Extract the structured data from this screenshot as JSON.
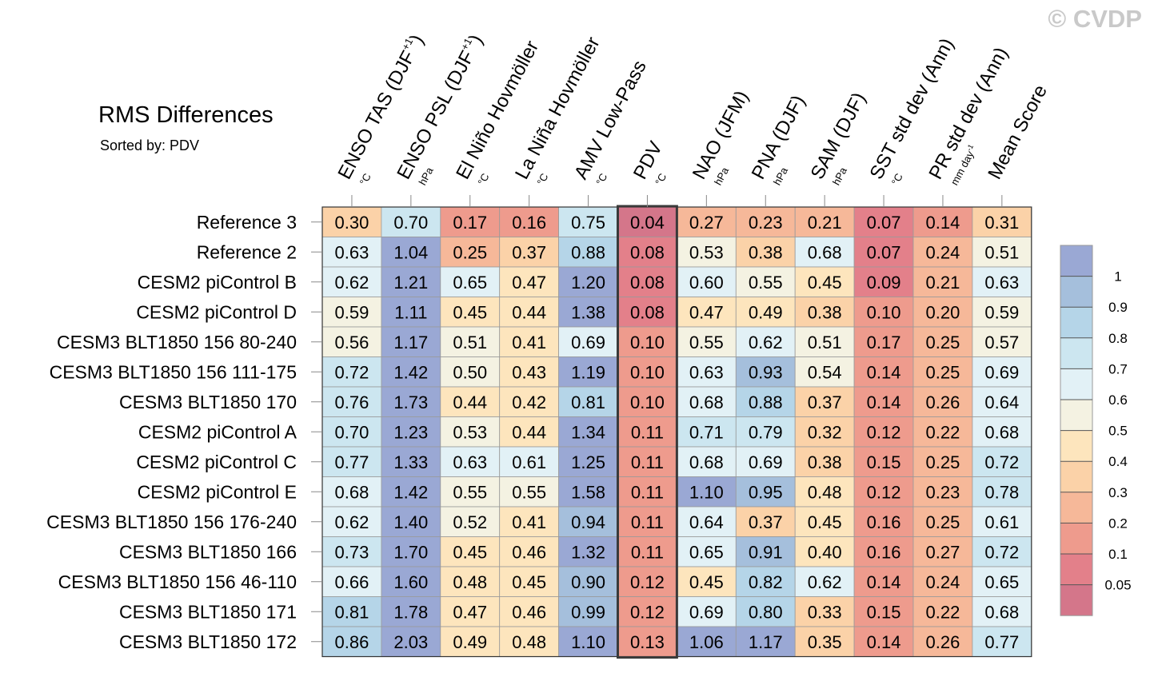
{
  "watermark": "© CVDP",
  "title": "RMS Differences",
  "subtitle": "Sorted by: PDV",
  "chart_data": {
    "type": "heatmap",
    "columns": [
      {
        "name": "ENSO TAS (DJF",
        "sup": "+1",
        "close": ")",
        "unit": "°C",
        "unit_sup": ""
      },
      {
        "name": "ENSO PSL (DJF",
        "sup": "+1",
        "close": ")",
        "unit": "hPa",
        "unit_sup": ""
      },
      {
        "name": "El Niño Hovmöller",
        "sup": "",
        "close": "",
        "unit": "°C",
        "unit_sup": ""
      },
      {
        "name": "La Niña Hovmöller",
        "sup": "",
        "close": "",
        "unit": "°C",
        "unit_sup": ""
      },
      {
        "name": "AMV Low-Pass",
        "sup": "",
        "close": "",
        "unit": "°C",
        "unit_sup": ""
      },
      {
        "name": "PDV",
        "sup": "",
        "close": "",
        "unit": "°C",
        "unit_sup": ""
      },
      {
        "name": "NAO (JFM)",
        "sup": "",
        "close": "",
        "unit": "hPa",
        "unit_sup": ""
      },
      {
        "name": "PNA (DJF)",
        "sup": "",
        "close": "",
        "unit": "hPa",
        "unit_sup": ""
      },
      {
        "name": "SAM (DJF)",
        "sup": "",
        "close": "",
        "unit": "hPa",
        "unit_sup": ""
      },
      {
        "name": "SST std dev (Ann)",
        "sup": "",
        "close": "",
        "unit": "°C",
        "unit_sup": ""
      },
      {
        "name": "PR std dev (Ann)",
        "sup": "",
        "close": "",
        "unit": "mm day",
        "unit_sup": "-1"
      },
      {
        "name": "Mean Score",
        "sup": "",
        "close": "",
        "unit": "",
        "unit_sup": ""
      }
    ],
    "highlight_column": "PDV",
    "rows": [
      {
        "label": "Reference 3",
        "values": [
          0.3,
          0.7,
          0.17,
          0.16,
          0.75,
          0.04,
          0.27,
          0.23,
          0.21,
          0.07,
          0.14,
          0.31
        ]
      },
      {
        "label": "Reference 2",
        "values": [
          0.63,
          1.04,
          0.25,
          0.37,
          0.88,
          0.08,
          0.53,
          0.38,
          0.68,
          0.07,
          0.24,
          0.51
        ]
      },
      {
        "label": "CESM2 piControl B",
        "values": [
          0.62,
          1.21,
          0.65,
          0.47,
          1.2,
          0.08,
          0.6,
          0.55,
          0.45,
          0.09,
          0.21,
          0.63
        ]
      },
      {
        "label": "CESM2 piControl D",
        "values": [
          0.59,
          1.11,
          0.45,
          0.44,
          1.38,
          0.08,
          0.47,
          0.49,
          0.38,
          0.1,
          0.2,
          0.59
        ]
      },
      {
        "label": "CESM3 BLT1850 156 80-240",
        "values": [
          0.56,
          1.17,
          0.51,
          0.41,
          0.69,
          0.1,
          0.55,
          0.62,
          0.51,
          0.17,
          0.25,
          0.57
        ]
      },
      {
        "label": "CESM3 BLT1850 156 111-175",
        "values": [
          0.72,
          1.42,
          0.5,
          0.43,
          1.19,
          0.1,
          0.63,
          0.93,
          0.54,
          0.14,
          0.25,
          0.69
        ]
      },
      {
        "label": "CESM3 BLT1850 170",
        "values": [
          0.76,
          1.73,
          0.44,
          0.42,
          0.81,
          0.1,
          0.68,
          0.88,
          0.37,
          0.14,
          0.26,
          0.64
        ]
      },
      {
        "label": "CESM2 piControl A",
        "values": [
          0.7,
          1.23,
          0.53,
          0.44,
          1.34,
          0.11,
          0.71,
          0.79,
          0.32,
          0.12,
          0.22,
          0.68
        ]
      },
      {
        "label": "CESM2 piControl C",
        "values": [
          0.77,
          1.33,
          0.63,
          0.61,
          1.25,
          0.11,
          0.68,
          0.69,
          0.38,
          0.15,
          0.25,
          0.72
        ]
      },
      {
        "label": "CESM2 piControl E",
        "values": [
          0.68,
          1.42,
          0.55,
          0.55,
          1.58,
          0.11,
          1.1,
          0.95,
          0.48,
          0.12,
          0.23,
          0.78
        ]
      },
      {
        "label": "CESM3 BLT1850 156 176-240",
        "values": [
          0.62,
          1.4,
          0.52,
          0.41,
          0.94,
          0.11,
          0.64,
          0.37,
          0.45,
          0.16,
          0.25,
          0.61
        ]
      },
      {
        "label": "CESM3 BLT1850 166",
        "values": [
          0.73,
          1.7,
          0.45,
          0.46,
          1.32,
          0.11,
          0.65,
          0.91,
          0.4,
          0.16,
          0.27,
          0.72
        ]
      },
      {
        "label": "CESM3 BLT1850 156 46-110",
        "values": [
          0.66,
          1.6,
          0.48,
          0.45,
          0.9,
          0.12,
          0.45,
          0.82,
          0.62,
          0.14,
          0.24,
          0.65
        ]
      },
      {
        "label": "CESM3 BLT1850 171",
        "values": [
          0.81,
          1.78,
          0.47,
          0.46,
          0.99,
          0.12,
          0.69,
          0.8,
          0.33,
          0.15,
          0.22,
          0.68
        ]
      },
      {
        "label": "CESM3 BLT1850 172",
        "values": [
          0.86,
          2.03,
          0.49,
          0.48,
          1.1,
          0.13,
          1.06,
          1.17,
          0.35,
          0.14,
          0.26,
          0.77
        ]
      }
    ],
    "value_format": "0.00",
    "colorbar": {
      "levels": [
        0.05,
        0.1,
        0.2,
        0.3,
        0.4,
        0.5,
        0.6,
        0.7,
        0.8,
        0.9,
        1
      ],
      "labels": [
        "0.05",
        "0.1",
        "0.2",
        "0.3",
        "0.4",
        "0.5",
        "0.6",
        "0.7",
        "0.8",
        "0.9",
        "1"
      ],
      "colors_low_to_high": [
        "#d4768a",
        "#e3808a",
        "#ee9b8d",
        "#f6b899",
        "#fbd2a8",
        "#fde5bd",
        "#f4f2e2",
        "#e2f1f6",
        "#cce6f0",
        "#b5d5e8",
        "#a5bfdc",
        "#9aa8d4"
      ]
    }
  }
}
